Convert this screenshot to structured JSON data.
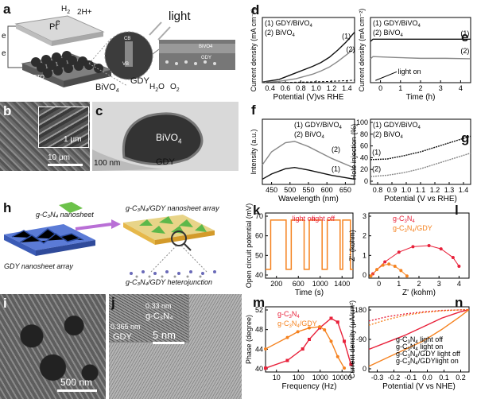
{
  "panels": {
    "a": {
      "label": "a",
      "pt": "Pt",
      "h2": "H",
      "h2sub": "2",
      "twoH": "2H+",
      "light": "light",
      "eminus": "e",
      "eplus": "e",
      "vb": "VB",
      "cb": "CB",
      "bivo4": "BiVO",
      "bivo4sub": "4",
      "gdy": "GDY",
      "h2o": "H",
      "h2osub": "2",
      "o": "O",
      "o2": "O",
      "o2sub": "2",
      "fto": "FTO",
      "inset_bivo4": "BiVO4",
      "inset_gdy": "GDY"
    },
    "b": {
      "label": "b",
      "scale_main": "10 μm",
      "scale_inset": "1 μm"
    },
    "c": {
      "label": "c",
      "bivo4": "BiVO",
      "bivo4sub": "4",
      "gdy": "GDY",
      "scale": "100 nm"
    },
    "h": {
      "label": "h",
      "gcn": "g-C₃N₄ nanosheet",
      "gdy": "GDY nanosheet array",
      "array": "g-C₃N₄/GDY nanosheet array",
      "hetero": "g-C₃N₄/GDY heterojunction"
    },
    "i": {
      "label": "i",
      "scale": "500 nm"
    },
    "j": {
      "label": "j",
      "d1": "0.33 nm",
      "d2": "0.365 nm",
      "gcn": "g-C₃N₄",
      "gdy": "GDY",
      "scale": "5 nm"
    }
  },
  "chart_data": [
    {
      "id": "d",
      "type": "line",
      "xlabel": "Potential (V)vs RHE",
      "ylabel": "Current density (mA cm⁻²)",
      "xticks": [
        "0.4",
        "0.6",
        "0.8",
        "1.0",
        "1.2",
        "1.4"
      ],
      "xlim": [
        0.3,
        1.4
      ],
      "ylim": [
        0,
        2.0
      ],
      "legend": [
        "(1) GDY/BiVO",
        "4",
        "(2) BiVO",
        "4"
      ],
      "series": [
        {
          "name": "(1)",
          "x": [
            0.3,
            0.5,
            0.7,
            0.9,
            1.0,
            1.1,
            1.2,
            1.3,
            1.4
          ],
          "y": [
            0.02,
            0.1,
            0.3,
            0.5,
            0.62,
            0.78,
            1.0,
            1.25,
            1.55
          ]
        },
        {
          "name": "(2)",
          "x": [
            0.3,
            0.5,
            0.7,
            0.9,
            1.0,
            1.1,
            1.2,
            1.3,
            1.4
          ],
          "y": [
            0.01,
            0.04,
            0.12,
            0.26,
            0.36,
            0.48,
            0.65,
            0.85,
            1.05
          ]
        }
      ],
      "labels": [
        "(1)",
        "(2)"
      ]
    },
    {
      "id": "e",
      "type": "line",
      "xlabel": "Time (h)",
      "ylabel": "Current density (mA cm⁻²)",
      "xticks": [
        "0",
        "1",
        "2",
        "3",
        "4"
      ],
      "xlim": [
        0,
        4
      ],
      "ylim": [
        0,
        1.5
      ],
      "legend": [
        "(1) GDY/BiVO",
        "4",
        "(2) BiVO",
        "4"
      ],
      "annotation": "light on",
      "series": [
        {
          "name": "(1)",
          "x": [
            0,
            0.1,
            1,
            2,
            3,
            4
          ],
          "y": [
            0.95,
            1.0,
            1.0,
            1.0,
            1.0,
            1.0
          ]
        },
        {
          "name": "(2)",
          "x": [
            0,
            0.1,
            1,
            2,
            3,
            4
          ],
          "y": [
            0.55,
            0.6,
            0.58,
            0.56,
            0.56,
            0.55
          ]
        }
      ],
      "labels": [
        "(1)",
        "(2)"
      ]
    },
    {
      "id": "f",
      "type": "line",
      "xlabel": "Wavelength (nm)",
      "ylabel": "Intensity (a.u.)",
      "xticks": [
        "450",
        "500",
        "550",
        "600",
        "650"
      ],
      "xlim": [
        450,
        650
      ],
      "ylim": [
        0,
        1
      ],
      "legend": [
        "(1) GDY/BiVO",
        "4",
        "(2) BiVO",
        "4"
      ],
      "series": [
        {
          "name": "(1)",
          "x": [
            450,
            470,
            500,
            520,
            550,
            600,
            650
          ],
          "y": [
            0.08,
            0.16,
            0.24,
            0.26,
            0.22,
            0.14,
            0.08
          ]
        },
        {
          "name": "(2)",
          "x": [
            450,
            470,
            500,
            520,
            550,
            600,
            650
          ],
          "y": [
            0.3,
            0.5,
            0.64,
            0.66,
            0.58,
            0.4,
            0.25
          ]
        }
      ],
      "labels": [
        "(2)",
        "(1)"
      ]
    },
    {
      "id": "g",
      "type": "line",
      "xlabel": "Potential (V vs RHE)",
      "ylabel": "Hole injection (%)",
      "xticks": [
        "0.8",
        "0.9",
        "1.0",
        "1.1",
        "1.2",
        "1.3",
        "1.4"
      ],
      "yticks": [
        "0",
        "20",
        "40",
        "60",
        "80",
        "100"
      ],
      "xlim": [
        0.8,
        1.4
      ],
      "ylim": [
        0,
        100
      ],
      "legend": [
        "(1) GDY/BiVO",
        "4",
        "(2) BiVO",
        "4"
      ],
      "series": [
        {
          "name": "(1)",
          "x": [
            0.8,
            0.9,
            1.0,
            1.1,
            1.2,
            1.3,
            1.4
          ],
          "y": [
            38,
            39,
            44,
            50,
            58,
            66,
            74
          ]
        },
        {
          "name": "(2)",
          "x": [
            0.8,
            0.9,
            1.0,
            1.1,
            1.2,
            1.3,
            1.4
          ],
          "y": [
            12,
            14,
            18,
            24,
            32,
            40,
            48
          ]
        }
      ],
      "labels": [
        "(1)",
        "(2)"
      ]
    },
    {
      "id": "k",
      "type": "line",
      "xlabel": "Time (s)",
      "ylabel": "Open circuit potential (mV)",
      "xticks": [
        "200",
        "600",
        "1000",
        "1400"
      ],
      "yticks": [
        "40",
        "50",
        "60",
        "70"
      ],
      "xlim": [
        100,
        1800
      ],
      "ylim": [
        35,
        72
      ],
      "light_on": "light on",
      "light_off": "light off",
      "series": [
        {
          "name": "OCP",
          "cycles": [
            [
              200,
              500
            ],
            [
              600,
              850
            ],
            [
              950,
              1200
            ],
            [
              1300,
              1550
            ],
            [
              1600,
              1750
            ]
          ],
          "high": 68,
          "low": 40
        }
      ]
    },
    {
      "id": "l",
      "type": "scatter",
      "xlabel": "Z' (kohm)",
      "ylabel": "Z'' (kohm)",
      "xticks": [
        "0",
        "1",
        "2",
        "3",
        "4"
      ],
      "yticks": [
        "0",
        "1",
        "2",
        "3"
      ],
      "xlim": [
        0,
        5
      ],
      "ylim": [
        0,
        3
      ],
      "legend": [
        "g-C",
        "3",
        "N",
        "4",
        "g-C",
        "3",
        "N",
        "4",
        "/GDY"
      ],
      "series": [
        {
          "name": "g-C3N4",
          "x": [
            0.2,
            0.8,
            1.5,
            2.2,
            3.0,
            3.6,
            4.2,
            4.5
          ],
          "y": [
            0.2,
            0.75,
            1.2,
            1.45,
            1.5,
            1.35,
            0.95,
            0.55
          ]
        },
        {
          "name": "g-C3N4/GDY",
          "x": [
            0.1,
            0.4,
            0.7,
            1.0,
            1.3,
            1.6,
            1.9
          ],
          "y": [
            0.1,
            0.4,
            0.6,
            0.65,
            0.55,
            0.35,
            0.1
          ]
        }
      ]
    },
    {
      "id": "m",
      "type": "line",
      "xlabel": "Frequency (Hz)",
      "ylabel": "Phase (degree)",
      "xticks": [
        "10",
        "100",
        "1000",
        "10000"
      ],
      "yticks": [
        "40",
        "44",
        "48",
        "52"
      ],
      "xlim": [
        1,
        10000
      ],
      "ylim": [
        38,
        55
      ],
      "legend": [
        "g-C",
        "3",
        "N",
        "4",
        "g-C",
        "3",
        "N",
        "4",
        "/GDY"
      ],
      "series": [
        {
          "name": "g-C3N4",
          "x": [
            1,
            10,
            50,
            100,
            300,
            1000,
            2000,
            4000,
            8000
          ],
          "y": [
            39,
            41,
            44,
            46.5,
            49.5,
            52,
            51,
            46,
            40
          ]
        },
        {
          "name": "g-C3N4/GDY",
          "x": [
            1,
            10,
            30,
            100,
            300,
            500,
            1000,
            2000,
            4000
          ],
          "y": [
            44,
            47,
            48.5,
            49.5,
            49.8,
            49,
            46,
            42,
            39
          ]
        }
      ]
    },
    {
      "id": "n",
      "type": "line",
      "xlabel": "Potential (V vs NHE)",
      "ylabel": "Current density (μA/cm²)",
      "xticks": [
        "-0.3",
        "-0.2",
        "-0.1",
        "0.0",
        "0.1",
        "0.2"
      ],
      "yticks": [
        "0",
        "-90",
        "-180"
      ],
      "xlim": [
        -0.3,
        0.25
      ],
      "ylim": [
        -220,
        10
      ],
      "legend": [
        "g-C",
        "3",
        "N",
        "4",
        " light off",
        "g-C",
        "3",
        "N",
        "4",
        " light on",
        "g-C",
        "3",
        "N",
        "4",
        "/GDY light off",
        "g-C",
        "3",
        "N",
        "4",
        "/GDYlight on"
      ],
      "series": [
        {
          "name": "a",
          "x": [
            -0.3,
            -0.2,
            -0.1,
            0,
            0.1,
            0.2,
            0.25
          ],
          "y": [
            -40,
            -25,
            -15,
            -8,
            -3,
            -1,
            0
          ]
        },
        {
          "name": "b",
          "x": [
            -0.3,
            -0.2,
            -0.1,
            0,
            0.1,
            0.2,
            0.25
          ],
          "y": [
            -140,
            -115,
            -90,
            -60,
            -30,
            -8,
            0
          ]
        },
        {
          "name": "c",
          "x": [
            -0.3,
            -0.2,
            -0.1,
            0,
            0.1,
            0.2,
            0.25
          ],
          "y": [
            -55,
            -35,
            -20,
            -10,
            -4,
            -1,
            0
          ]
        },
        {
          "name": "d",
          "x": [
            -0.3,
            -0.2,
            -0.1,
            0,
            0.1,
            0.2,
            0.25
          ],
          "y": [
            -200,
            -170,
            -140,
            -110,
            -70,
            -25,
            0
          ]
        }
      ]
    }
  ],
  "colors": {
    "red": "#e8213a",
    "orange": "#f5821f",
    "black": "#111111",
    "gray": "#888888"
  }
}
